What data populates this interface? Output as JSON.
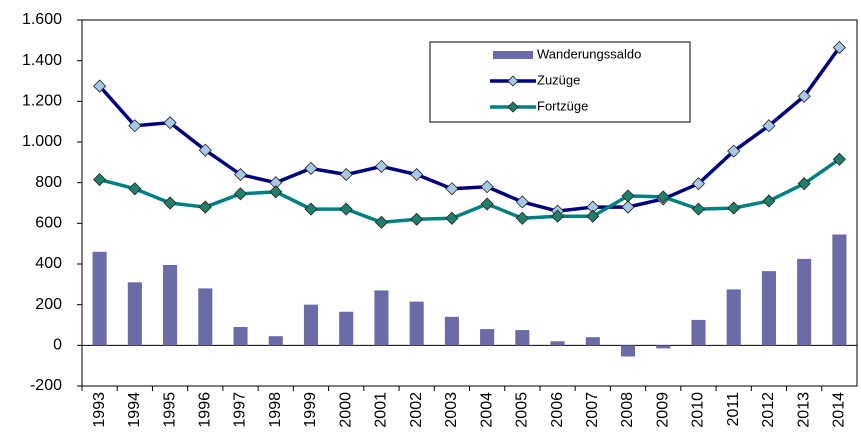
{
  "chart_data": {
    "type": "bar-line",
    "categories": [
      "1993",
      "1994",
      "1995",
      "1996",
      "1997",
      "1998",
      "1999",
      "2000",
      "2001",
      "2002",
      "2003",
      "2004",
      "2005",
      "2006",
      "2007",
      "2008",
      "2009",
      "2010",
      "2011",
      "2012",
      "2013",
      "2014"
    ],
    "series": [
      {
        "name": "Wanderungssaldo",
        "type": "bar",
        "color": "#6b6ba8",
        "values": [
          460,
          310,
          395,
          280,
          90,
          45,
          200,
          165,
          270,
          215,
          140,
          80,
          75,
          20,
          40,
          -55,
          -15,
          125,
          275,
          365,
          425,
          545
        ]
      },
      {
        "name": "Zuzüge",
        "type": "line",
        "color": "#000080",
        "marker_color": "#a6cae6",
        "values": [
          1275,
          1080,
          1095,
          960,
          840,
          800,
          870,
          840,
          880,
          840,
          770,
          780,
          705,
          660,
          680,
          680,
          720,
          795,
          955,
          1080,
          1225,
          1465
        ]
      },
      {
        "name": "Fortzüge",
        "type": "line",
        "color": "#008080",
        "marker_color": "#1f7f6a",
        "values": [
          815,
          770,
          700,
          680,
          745,
          755,
          670,
          670,
          605,
          620,
          625,
          695,
          625,
          635,
          635,
          735,
          730,
          670,
          675,
          710,
          795,
          915
        ]
      }
    ],
    "ylim": [
      -200,
      1600
    ],
    "yticks": [
      -200,
      0,
      200,
      400,
      600,
      800,
      {
        "value": 1000,
        "label": "1.000"
      },
      {
        "value": 1200,
        "label": "1.200"
      },
      {
        "value": 1400,
        "label": "1.400"
      },
      {
        "value": 1600,
        "label": "1.600"
      }
    ],
    "grid": false
  }
}
